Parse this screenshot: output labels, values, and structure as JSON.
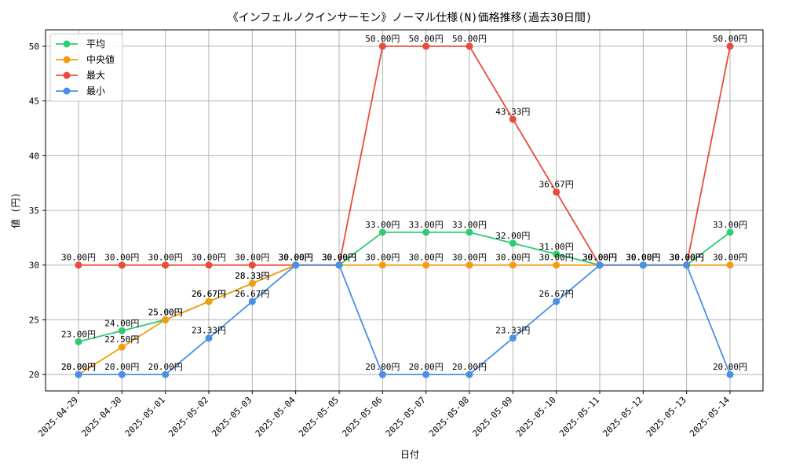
{
  "chart_data": {
    "type": "line",
    "title": "《インフェルノクインサーモン》ノーマル仕様(N)価格推移(過去30日間)",
    "xlabel": "日付",
    "ylabel": "値 (円)",
    "ylim": [
      18.5,
      51.5
    ],
    "yticks": [
      20,
      25,
      30,
      35,
      40,
      45,
      50
    ],
    "grid": true,
    "legend_position": "upper-left",
    "value_suffix": "円",
    "categories": [
      "2025-04-29",
      "2025-04-30",
      "2025-05-01",
      "2025-05-02",
      "2025-05-03",
      "2025-05-04",
      "2025-05-05",
      "2025-05-06",
      "2025-05-07",
      "2025-05-08",
      "2025-05-09",
      "2025-05-10",
      "2025-05-11",
      "2025-05-12",
      "2025-05-13",
      "2025-05-14"
    ],
    "series": [
      {
        "name": "平均",
        "color": "#2ecc71",
        "values": [
          23.0,
          24.0,
          25.0,
          26.67,
          28.33,
          30.0,
          30.0,
          33.0,
          33.0,
          33.0,
          32.0,
          31.0,
          30.0,
          30.0,
          30.0,
          33.0
        ]
      },
      {
        "name": "中央値",
        "color": "#f39c12",
        "values": [
          20.0,
          22.5,
          25.0,
          26.67,
          28.33,
          30.0,
          30.0,
          30.0,
          30.0,
          30.0,
          30.0,
          30.0,
          30.0,
          30.0,
          30.0,
          30.0
        ]
      },
      {
        "name": "最大",
        "color": "#e74c3c",
        "values": [
          30.0,
          30.0,
          30.0,
          30.0,
          30.0,
          30.0,
          30.0,
          50.0,
          50.0,
          50.0,
          43.33,
          36.67,
          30.0,
          30.0,
          30.0,
          50.0
        ]
      },
      {
        "name": "最小",
        "color": "#4a90e2",
        "values": [
          20.0,
          20.0,
          20.0,
          23.33,
          26.67,
          30.0,
          30.0,
          20.0,
          20.0,
          20.0,
          23.33,
          26.67,
          30.0,
          30.0,
          30.0,
          20.0
        ]
      }
    ]
  }
}
